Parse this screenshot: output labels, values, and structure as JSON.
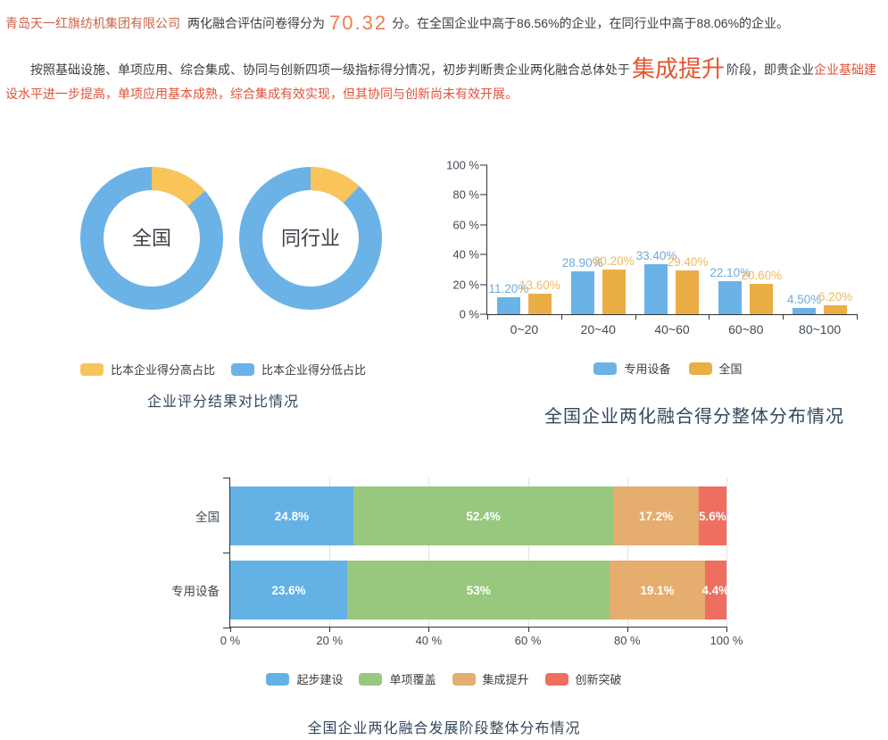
{
  "header": {
    "company": "青岛天一红旗纺机集团有限公司",
    "score_prefix": "两化融合评估问卷得分为",
    "score": "70.32",
    "score_suffix": "分。在全国企业中高于86.56%的企业，在同行业中高于88.06%的企业。",
    "assessment_lead": "按照基础设施、单项应用、综合集成、协同与创新四项一级指标得分情况，初步判断贵企业两化融合总体处于",
    "stage": "集成提升",
    "stage_suffix": "阶段，即贵企业",
    "stage_detail": "企业基础建设水平进一步提高，单项应用基本成熟，综合集成有效实现，但其协同与创新尚未有效开展。"
  },
  "colors": {
    "company": "#cb6447",
    "score": "#ec7c52",
    "stage": "#e4552f",
    "detail_red": "#e1513a",
    "body_text": "#3d3d3d",
    "title": "#33475b",
    "axis": "#333333",
    "axis_label": "#3f4a54",
    "blue": "#6bb2e7",
    "donut_yellow": "#f9c45a",
    "bar_orange": "#ebae45",
    "stack_blue": "#63b1e5",
    "stack_green": "#97c87e",
    "stack_tan": "#e5ad6e",
    "stack_red": "#ee6f5f"
  },
  "chart_data": [
    {
      "type": "pie",
      "subtype": "donut-pair",
      "title": "企业评分结果对比情况",
      "legend": [
        "比本企业得分高占比",
        "比本企业得分低占比"
      ],
      "colors": [
        "#f9c45a",
        "#6bb2e7"
      ],
      "charts": [
        {
          "label": "全国",
          "slices": [
            {
              "name": "比本企业得分高占比",
              "value": 13.44
            },
            {
              "name": "比本企业得分低占比",
              "value": 86.56
            }
          ]
        },
        {
          "label": "同行业",
          "slices": [
            {
              "name": "比本企业得分高占比",
              "value": 11.94
            },
            {
              "name": "比本企业得分低占比",
              "value": 88.06
            }
          ]
        }
      ]
    },
    {
      "type": "bar",
      "title": "全国企业两化融合得分整体分布情况",
      "categories": [
        "0~20",
        "20~40",
        "40~60",
        "60~80",
        "80~100"
      ],
      "series": [
        {
          "name": "专用设备",
          "color": "#6bb2e7",
          "label_color": "#6fa9dd",
          "values": [
            11.2,
            28.9,
            33.4,
            22.1,
            4.5
          ],
          "labels": [
            "11.20%",
            "28.90%",
            "33.40%",
            "22.10%",
            "4.50%"
          ]
        },
        {
          "name": "全国",
          "color": "#ebae45",
          "label_color": "#f0b962",
          "values": [
            13.6,
            30.2,
            29.4,
            20.6,
            6.2
          ],
          "labels": [
            "13.60%",
            "30.20%",
            "29.40%",
            "20.60%",
            "6.20%"
          ]
        }
      ],
      "yticks": [
        "0 %",
        "20 %",
        "40 %",
        "60 %",
        "80 %",
        "100 %"
      ],
      "ylim": [
        0,
        100
      ],
      "grid": false,
      "legend_position": "bottom"
    },
    {
      "type": "bar",
      "subtype": "horizontal-stacked",
      "title": "全国企业两化融合发展阶段整体分布情况",
      "categories": [
        "全国",
        "专用设备"
      ],
      "series": [
        {
          "name": "起步建设",
          "color": "#63b1e5",
          "values": [
            24.8,
            23.6
          ],
          "labels": [
            "24.8%",
            "23.6%"
          ]
        },
        {
          "name": "单项覆盖",
          "color": "#97c87e",
          "values": [
            52.4,
            53
          ],
          "labels": [
            "52.4%",
            "53%"
          ]
        },
        {
          "name": "集成提升",
          "color": "#e5ad6e",
          "values": [
            17.2,
            19.1
          ],
          "labels": [
            "17.2%",
            "19.1%"
          ]
        },
        {
          "name": "创新突破",
          "color": "#ee6f5f",
          "values": [
            5.6,
            4.4
          ],
          "labels": [
            "5.6%",
            "4.4%"
          ]
        }
      ],
      "xticks": [
        "0 %",
        "20 %",
        "40 %",
        "60 %",
        "80 %",
        "100 %"
      ],
      "xlim": [
        0,
        100
      ],
      "grid": true,
      "legend_position": "bottom"
    }
  ]
}
